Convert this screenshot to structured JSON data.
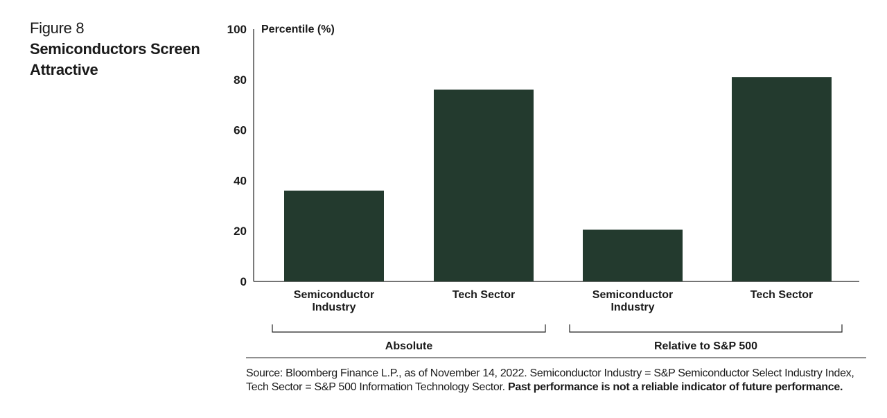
{
  "figure": {
    "label": "Figure 8",
    "title": "Semiconductors Screen Attractive"
  },
  "chart_data": {
    "type": "bar",
    "title": "Semiconductors Screen Attractive",
    "ylabel": "Percentile (%)",
    "xlabel": "",
    "ylim": [
      0,
      100
    ],
    "yticks": [
      0,
      20,
      40,
      60,
      80,
      100
    ],
    "grid": false,
    "bar_color": "#233a2e",
    "categories": [
      "Semiconductor Industry",
      "Tech Sector",
      "Semiconductor Industry",
      "Tech Sector"
    ],
    "values": [
      36,
      76,
      20.5,
      81
    ],
    "groups": [
      {
        "name": "Absolute",
        "categories": [
          0,
          1
        ]
      },
      {
        "name": "Relative to S&P 500",
        "categories": [
          2,
          3
        ]
      }
    ]
  },
  "source": {
    "text": "Source: Bloomberg Finance L.P., as of November 14, 2022. Semiconductor Industry = S&P Semiconductor Select Industry Index, Tech Sector = S&P 500 Information Technology Sector. ",
    "disclaimer": "Past performance is not a reliable indicator of future performance."
  }
}
